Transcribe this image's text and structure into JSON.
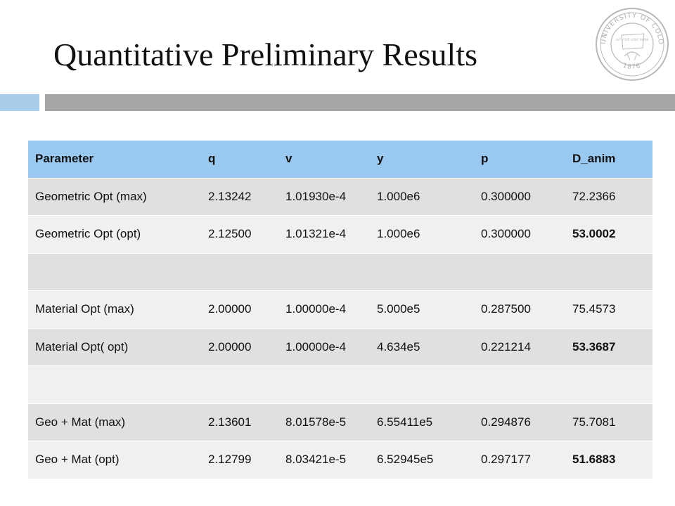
{
  "slide": {
    "title": "Quantitative Preliminary Results",
    "seal_text_top": "UNIVERSITY OF COLORADO",
    "seal_text_year": "1876",
    "seal_motto": "LET YOUR LIGHT SHINE"
  },
  "colors": {
    "header_row": "#99c9f1",
    "row_dark": "#e0e0e0",
    "row_light": "#f0f0f0",
    "accent_bar": "#a9cde8",
    "divider_bar": "#a6a6a6"
  },
  "table": {
    "headers": [
      "Parameter",
      "q",
      "v",
      "y",
      "p",
      "D_anim"
    ],
    "rows": [
      [
        "Geometric Opt (max)",
        "2.13242",
        "1.01930e-4",
        "1.000e6",
        "0.300000",
        "72.2366"
      ],
      [
        "Geometric Opt (opt)",
        "2.12500",
        "1.01321e-4",
        "1.000e6",
        "0.300000",
        "53.0002"
      ],
      [
        "",
        "",
        "",
        "",
        "",
        ""
      ],
      [
        "Material Opt (max)",
        "2.00000",
        "1.00000e-4",
        "5.000e5",
        "0.287500",
        "75.4573"
      ],
      [
        "Material Opt( opt)",
        "2.00000",
        "1.00000e-4",
        "4.634e5",
        "0.221214",
        "53.3687"
      ],
      [
        "",
        "",
        "",
        "",
        "",
        ""
      ],
      [
        "Geo + Mat (max)",
        "2.13601",
        "8.01578e-5",
        "6.55411e5",
        "0.294876",
        "75.7081"
      ],
      [
        "Geo + Mat (opt)",
        "2.12799",
        "8.03421e-5",
        "6.52945e5",
        "0.297177",
        "51.6883"
      ]
    ]
  }
}
